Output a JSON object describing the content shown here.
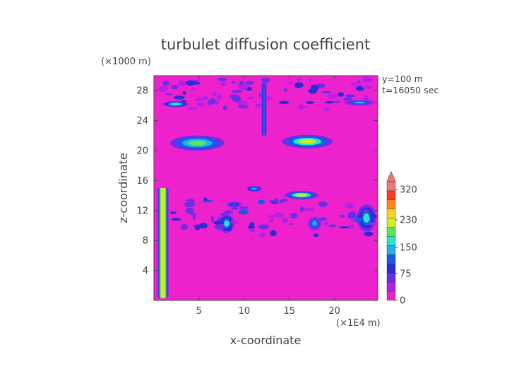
{
  "chart_data": {
    "type": "heatmap",
    "title": "turbulet diffusion coefficient",
    "xlabel": "x-coordinate",
    "ylabel": "z-coordinate",
    "x_unit": "(×1E4 m)",
    "y_unit": "(×1000 m)",
    "annotations": [
      "y=100 m",
      "t=16050 sec"
    ],
    "xlim": [
      0,
      24.8
    ],
    "ylim": [
      0,
      30
    ],
    "x_ticks": [
      5,
      10,
      15,
      20
    ],
    "y_ticks": [
      4,
      8,
      12,
      16,
      20,
      24,
      28
    ],
    "colorbar": {
      "levels": [
        0,
        75,
        150,
        230,
        320
      ],
      "labels": [
        "0",
        "75",
        "150",
        "230",
        "320"
      ],
      "colors": [
        "#ee22cc",
        "#b81ee6",
        "#6a2ee8",
        "#2a2ad8",
        "#1a58e8",
        "#20b0f0",
        "#22e8cc",
        "#5ae65a",
        "#ccee22",
        "#ffd21e",
        "#ff8a1a",
        "#ff3a1a",
        "#f07878"
      ],
      "extend": "max"
    },
    "field": {
      "background_value": 0,
      "features": [
        {
          "kind": "streak",
          "x": [
            1.8,
            7.8
          ],
          "z": [
            20.0,
            22.0
          ],
          "value": 180
        },
        {
          "kind": "streak",
          "x": [
            14.2,
            19.8
          ],
          "z": [
            20.3,
            22.1
          ],
          "value": 200
        },
        {
          "kind": "streak",
          "x": [
            10.2,
            12.0
          ],
          "z": [
            14.5,
            15.3
          ],
          "value": 140
        },
        {
          "kind": "streak",
          "x": [
            14.5,
            18.2
          ],
          "z": [
            13.5,
            14.6
          ],
          "value": 200
        },
        {
          "kind": "column",
          "x": [
            0.4,
            1.6
          ],
          "z": [
            0.3,
            15.0
          ],
          "value": 220
        },
        {
          "kind": "patch",
          "x": [
            7.2,
            8.9
          ],
          "z": [
            9.0,
            11.5
          ],
          "value": 150
        },
        {
          "kind": "patch",
          "x": [
            17.0,
            18.6
          ],
          "z": [
            9.3,
            11.2
          ],
          "value": 130
        },
        {
          "kind": "patch",
          "x": [
            22.5,
            24.6
          ],
          "z": [
            9.2,
            12.8
          ],
          "value": 150
        },
        {
          "kind": "patch",
          "x": [
            8.0,
            9.8
          ],
          "z": [
            12.4,
            13.2
          ],
          "value": 120
        },
        {
          "kind": "band",
          "x": [
            2.0,
            24.5
          ],
          "z": [
            8.5,
            13.5
          ],
          "value": 70
        },
        {
          "kind": "band",
          "x": [
            1.0,
            24.0
          ],
          "z": [
            25.5,
            29.5
          ],
          "value": 60
        },
        {
          "kind": "patch",
          "x": [
            1.0,
            3.8
          ],
          "z": [
            25.8,
            26.6
          ],
          "value": 160
        },
        {
          "kind": "patch",
          "x": [
            21.0,
            24.6
          ],
          "z": [
            26.0,
            26.8
          ],
          "value": 130
        },
        {
          "kind": "column",
          "x": [
            11.9,
            12.5
          ],
          "z": [
            22.0,
            29.0
          ],
          "value": 120
        }
      ]
    }
  }
}
